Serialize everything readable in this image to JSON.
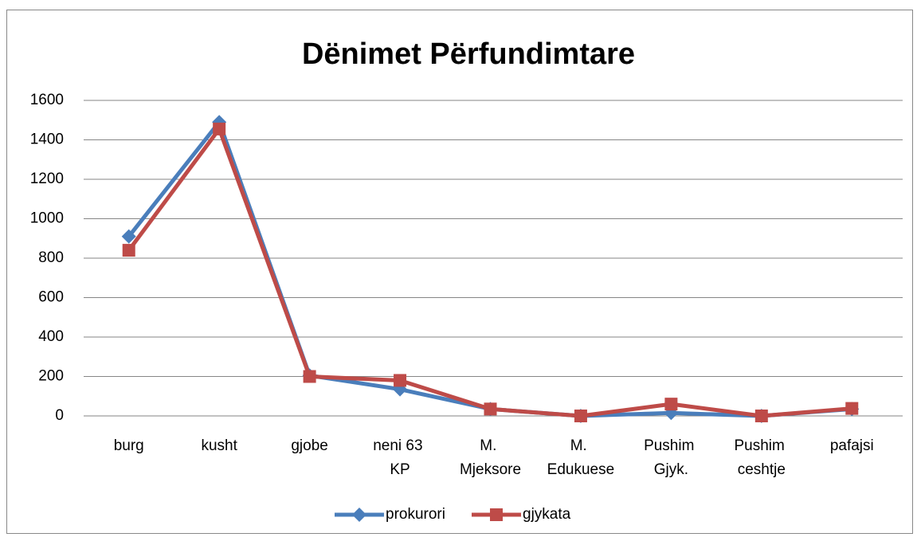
{
  "chart_data": {
    "type": "line",
    "title": "Dënimet Përfundimtare",
    "categories": [
      "burg",
      "kusht",
      "gjobe",
      "neni 63 KP",
      "M. Mjeksore",
      "M. Edukuese",
      "Pushim Gjyk.",
      "Pushim ceshtje",
      "pafajsi"
    ],
    "series": [
      {
        "name": "prokurori",
        "color": "#4a7ebb",
        "marker": "diamond",
        "values": [
          910,
          1490,
          205,
          135,
          35,
          0,
          15,
          0,
          35
        ]
      },
      {
        "name": "gjykata",
        "color": "#be4b48",
        "marker": "square",
        "values": [
          840,
          1455,
          200,
          180,
          35,
          0,
          60,
          0,
          38
        ]
      }
    ],
    "ylim": [
      0,
      1600
    ],
    "yticks": [
      0,
      200,
      400,
      600,
      800,
      1000,
      1200,
      1400,
      1600
    ],
    "grid": true,
    "legend": "bottom"
  }
}
